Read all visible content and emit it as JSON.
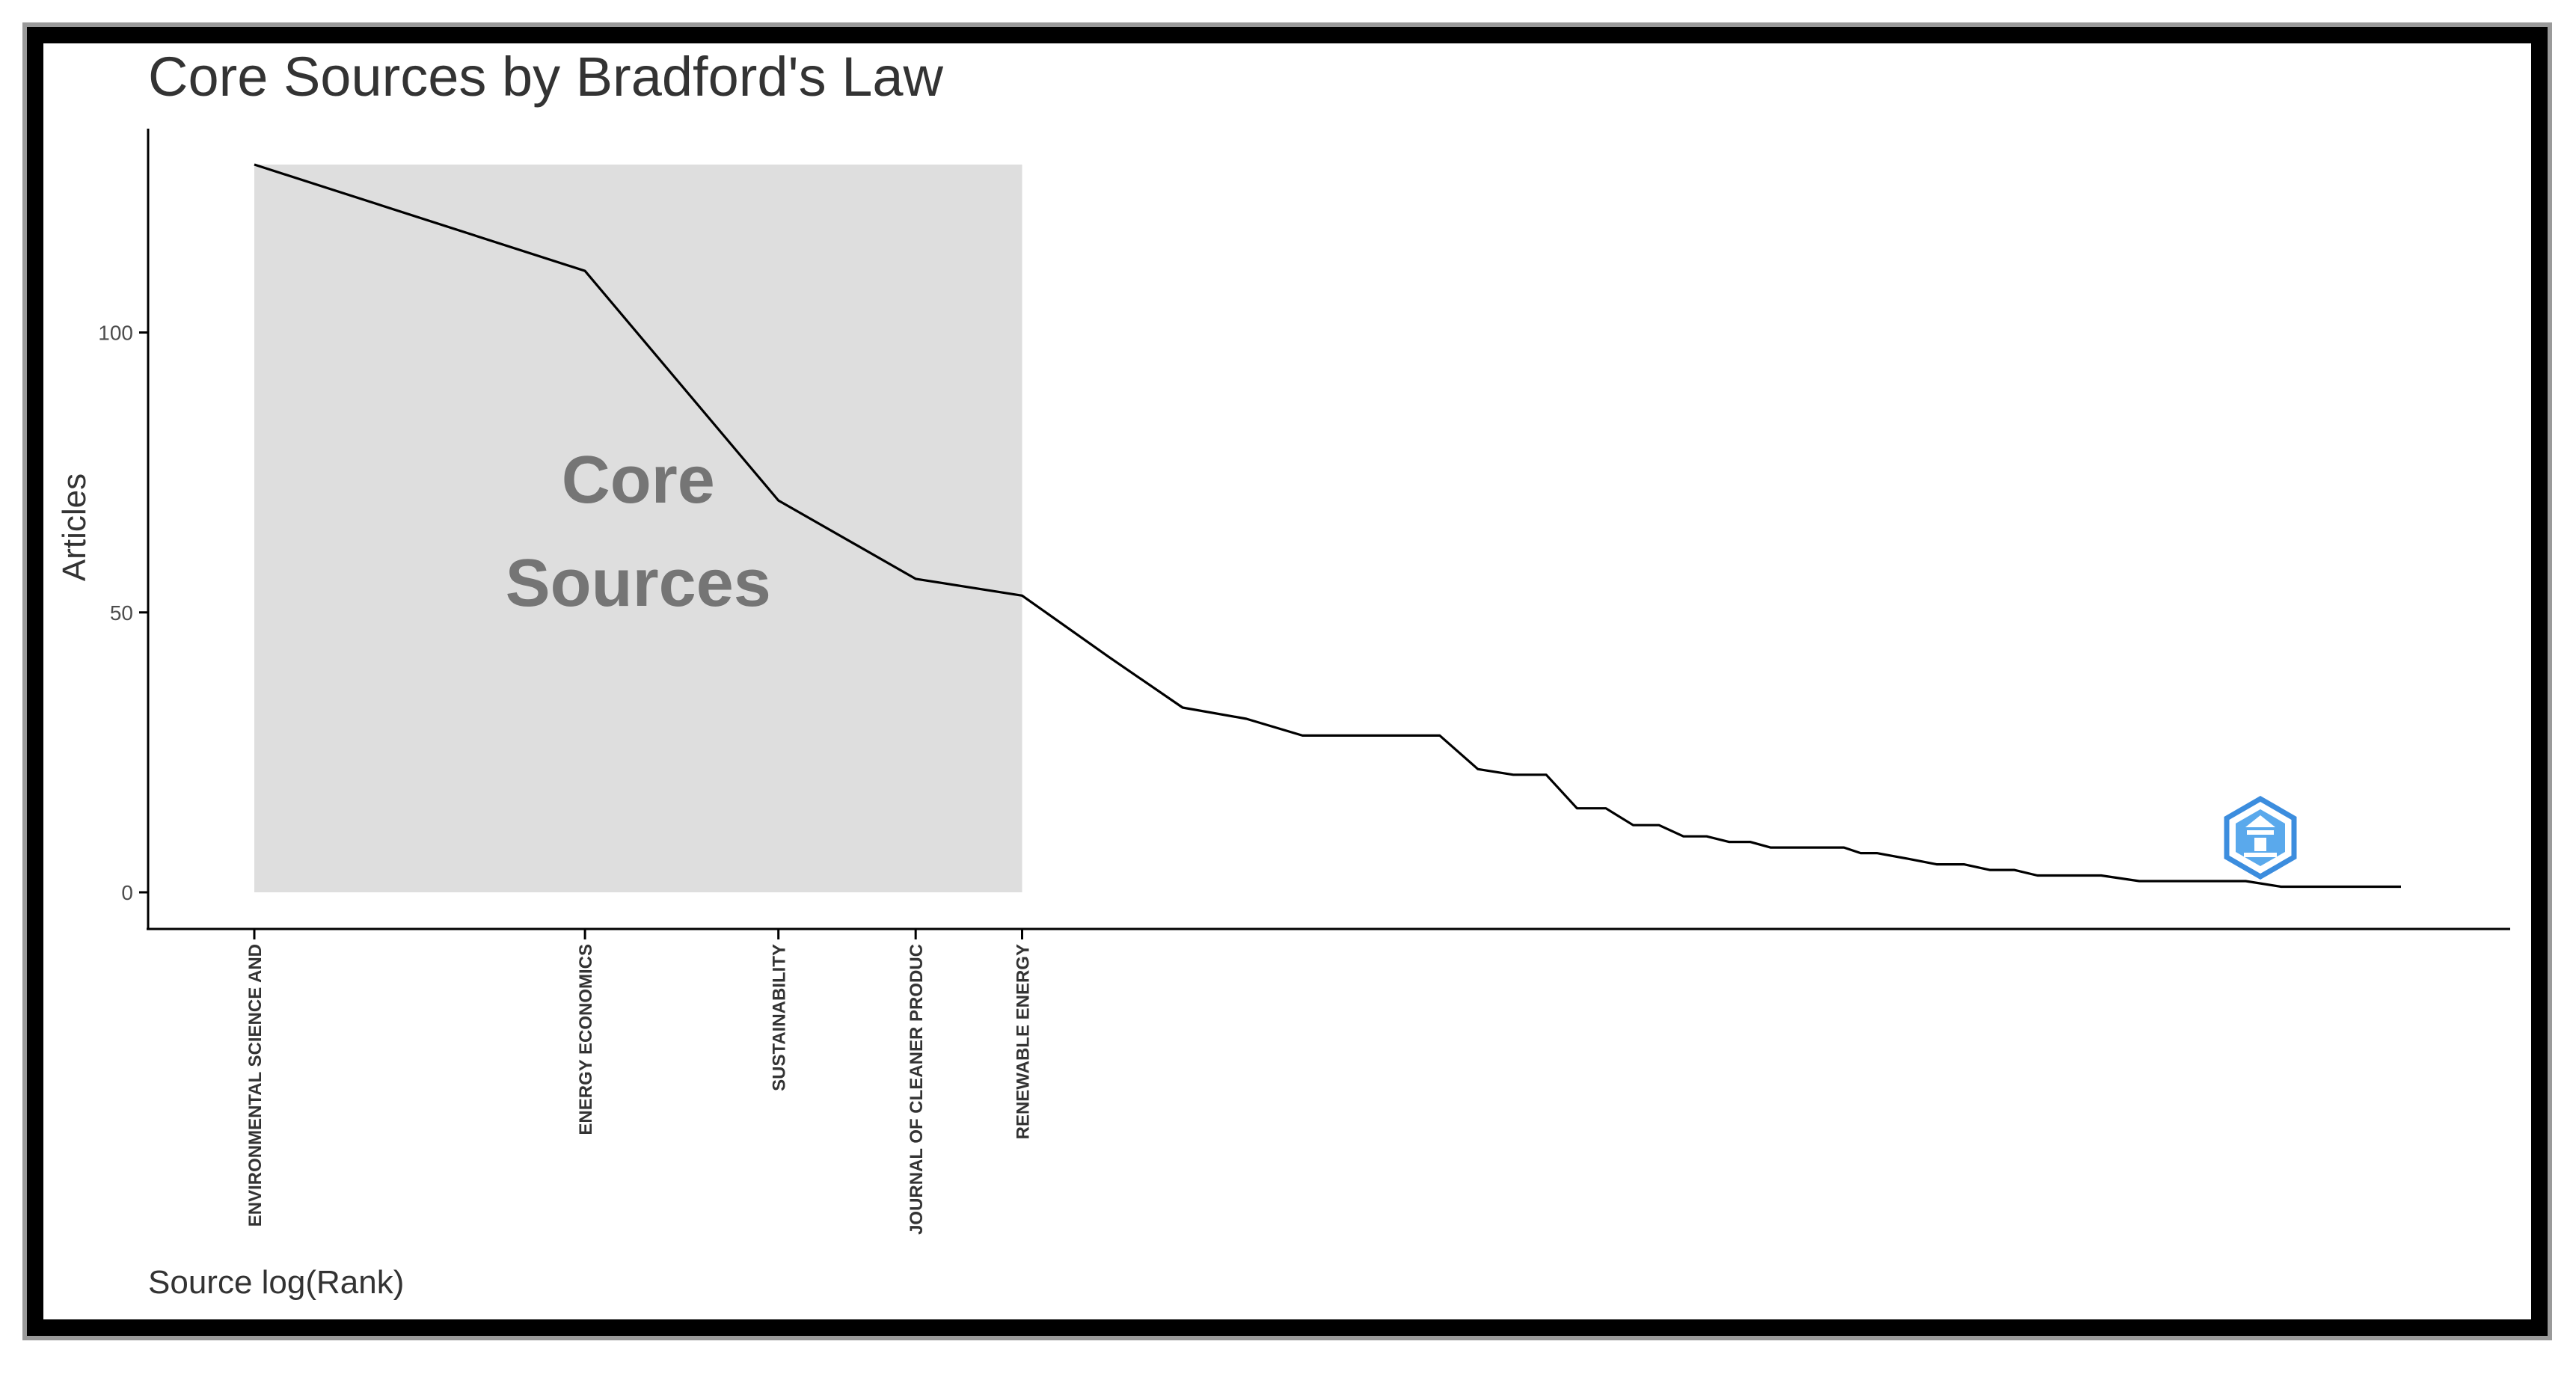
{
  "chart_data": {
    "type": "area",
    "title": "Core Sources by Bradford's Law",
    "xlabel": "Source log(Rank)",
    "ylabel": "Articles",
    "x_scale": "log",
    "ylim": [
      0,
      130
    ],
    "y_ticks": [
      0,
      50,
      100
    ],
    "grid": false,
    "core_zone": {
      "label_lines": [
        "Core",
        "Sources"
      ],
      "rank_start": 1,
      "rank_end": 5,
      "max_articles": 130,
      "color": "#dedede"
    },
    "series": [
      {
        "x": [
          1,
          2,
          3,
          4,
          5,
          6,
          7,
          8,
          9,
          10,
          11,
          12,
          13,
          14,
          15,
          16,
          17,
          18,
          19,
          20,
          21,
          22,
          23,
          24,
          25,
          26,
          27,
          28,
          29,
          30,
          32,
          34,
          36,
          38,
          40,
          42,
          45,
          48,
          52,
          56,
          60,
          65,
          70,
          80,
          90
        ],
        "values": [
          130,
          111,
          70,
          56,
          53,
          42,
          33,
          31,
          28,
          28,
          28,
          28,
          22,
          21,
          21,
          15,
          15,
          12,
          12,
          10,
          10,
          9,
          9,
          8,
          8,
          8,
          8,
          8,
          7,
          7,
          6,
          5,
          5,
          4,
          4,
          3,
          3,
          3,
          2,
          2,
          2,
          2,
          1,
          1,
          1
        ],
        "color": "#000000"
      }
    ],
    "categories": [
      {
        "rank": 1,
        "label": "ENVIRONMENTAL SCIENCE AND"
      },
      {
        "rank": 2,
        "label": "ENERGY ECONOMICS"
      },
      {
        "rank": 3,
        "label": "SUSTAINABILITY"
      },
      {
        "rank": 4,
        "label": "JOURNAL OF CLEANER PRODUC"
      },
      {
        "rank": 5,
        "label": "RENEWABLE ENERGY"
      }
    ]
  },
  "logo": {
    "icon": "hexagon-logo-icon",
    "color": "#3c8dde"
  }
}
